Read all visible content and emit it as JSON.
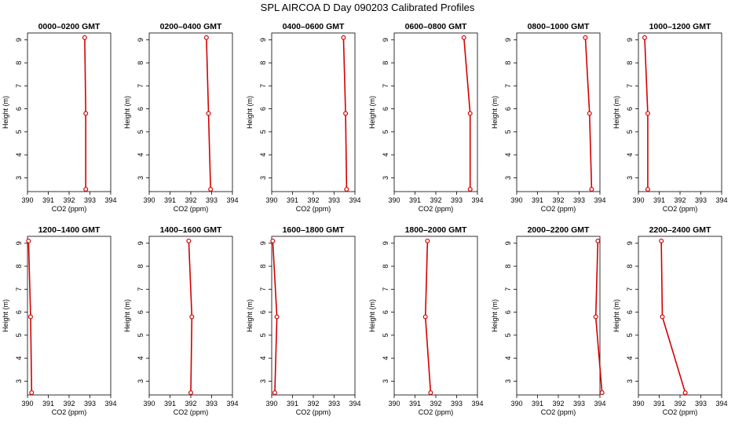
{
  "figure": {
    "title": "SPL AIRCOA D  Day 090203  Calibrated Profiles",
    "line_color": "#d40000"
  },
  "chart_data": [
    {
      "type": "line",
      "title": "0000–0200 GMT",
      "xlabel": "CO2 (ppm)",
      "ylabel": "Height (m)",
      "xlim": [
        390,
        394
      ],
      "ylim": [
        2.4,
        9.3
      ],
      "xticks": [
        390,
        391,
        392,
        393,
        394
      ],
      "yticks": [
        3,
        4,
        5,
        6,
        7,
        8,
        9
      ],
      "grid": false,
      "series": [
        {
          "x": [
            392.8,
            392.8,
            392.75
          ],
          "y": [
            2.5,
            5.8,
            9.1
          ]
        }
      ]
    },
    {
      "type": "line",
      "title": "0200–0400 GMT",
      "xlabel": "CO2 (ppm)",
      "ylabel": "Height (m)",
      "xlim": [
        390,
        394
      ],
      "ylim": [
        2.4,
        9.3
      ],
      "xticks": [
        390,
        391,
        392,
        393,
        394
      ],
      "yticks": [
        3,
        4,
        5,
        6,
        7,
        8,
        9
      ],
      "grid": false,
      "series": [
        {
          "x": [
            392.95,
            392.85,
            392.75
          ],
          "y": [
            2.5,
            5.8,
            9.1
          ]
        }
      ]
    },
    {
      "type": "line",
      "title": "0400–0600 GMT",
      "xlabel": "CO2 (ppm)",
      "ylabel": "Height (m)",
      "xlim": [
        390,
        394
      ],
      "ylim": [
        2.4,
        9.3
      ],
      "xticks": [
        390,
        391,
        392,
        393,
        394
      ],
      "yticks": [
        3,
        4,
        5,
        6,
        7,
        8,
        9
      ],
      "grid": false,
      "series": [
        {
          "x": [
            393.6,
            393.55,
            393.45
          ],
          "y": [
            2.5,
            5.8,
            9.1
          ]
        }
      ]
    },
    {
      "type": "line",
      "title": "0600–0800 GMT",
      "xlabel": "CO2 (ppm)",
      "ylabel": "Height (m)",
      "xlim": [
        390,
        394
      ],
      "ylim": [
        2.4,
        9.3
      ],
      "xticks": [
        390,
        391,
        392,
        393,
        394
      ],
      "yticks": [
        3,
        4,
        5,
        6,
        7,
        8,
        9
      ],
      "grid": false,
      "series": [
        {
          "x": [
            393.65,
            393.65,
            393.35
          ],
          "y": [
            2.5,
            5.8,
            9.1
          ]
        }
      ]
    },
    {
      "type": "line",
      "title": "0800–1000 GMT",
      "xlabel": "CO2 (ppm)",
      "ylabel": "Height (m)",
      "xlim": [
        390,
        394
      ],
      "ylim": [
        2.4,
        9.3
      ],
      "xticks": [
        390,
        391,
        392,
        393,
        394
      ],
      "yticks": [
        3,
        4,
        5,
        6,
        7,
        8,
        9
      ],
      "grid": false,
      "series": [
        {
          "x": [
            393.6,
            393.5,
            393.3
          ],
          "y": [
            2.5,
            5.8,
            9.1
          ]
        }
      ]
    },
    {
      "type": "line",
      "title": "1000–1200 GMT",
      "xlabel": "CO2 (ppm)",
      "ylabel": "Height (m)",
      "xlim": [
        390,
        394
      ],
      "ylim": [
        2.4,
        9.3
      ],
      "xticks": [
        390,
        391,
        392,
        393,
        394
      ],
      "yticks": [
        3,
        4,
        5,
        6,
        7,
        8,
        9
      ],
      "grid": false,
      "series": [
        {
          "x": [
            390.45,
            390.45,
            390.3
          ],
          "y": [
            2.5,
            5.8,
            9.1
          ]
        }
      ]
    },
    {
      "type": "line",
      "title": "1200–1400 GMT",
      "xlabel": "CO2 (ppm)",
      "ylabel": "Height (m)",
      "xlim": [
        390,
        394
      ],
      "ylim": [
        2.4,
        9.3
      ],
      "xticks": [
        390,
        391,
        392,
        393,
        394
      ],
      "yticks": [
        3,
        4,
        5,
        6,
        7,
        8,
        9
      ],
      "grid": false,
      "series": [
        {
          "x": [
            390.2,
            390.15,
            390.05
          ],
          "y": [
            2.5,
            5.8,
            9.1
          ]
        }
      ]
    },
    {
      "type": "line",
      "title": "1400–1600 GMT",
      "xlabel": "CO2 (ppm)",
      "ylabel": "Height (m)",
      "xlim": [
        390,
        394
      ],
      "ylim": [
        2.4,
        9.3
      ],
      "xticks": [
        390,
        391,
        392,
        393,
        394
      ],
      "yticks": [
        3,
        4,
        5,
        6,
        7,
        8,
        9
      ],
      "grid": false,
      "series": [
        {
          "x": [
            392.0,
            392.05,
            391.9
          ],
          "y": [
            2.5,
            5.8,
            9.1
          ]
        }
      ]
    },
    {
      "type": "line",
      "title": "1600–1800 GMT",
      "xlabel": "CO2 (ppm)",
      "ylabel": "Height (m)",
      "xlim": [
        390,
        394
      ],
      "ylim": [
        2.4,
        9.3
      ],
      "xticks": [
        390,
        391,
        392,
        393,
        394
      ],
      "yticks": [
        3,
        4,
        5,
        6,
        7,
        8,
        9
      ],
      "grid": false,
      "series": [
        {
          "x": [
            390.15,
            390.25,
            390.05
          ],
          "y": [
            2.5,
            5.8,
            9.1
          ]
        }
      ]
    },
    {
      "type": "line",
      "title": "1800–2000 GMT",
      "xlabel": "CO2 (ppm)",
      "ylabel": "Height (m)",
      "xlim": [
        390,
        394
      ],
      "ylim": [
        2.4,
        9.3
      ],
      "xticks": [
        390,
        391,
        392,
        393,
        394
      ],
      "yticks": [
        3,
        4,
        5,
        6,
        7,
        8,
        9
      ],
      "grid": false,
      "series": [
        {
          "x": [
            391.75,
            391.5,
            391.6
          ],
          "y": [
            2.5,
            5.8,
            9.1
          ]
        }
      ]
    },
    {
      "type": "line",
      "title": "2000–2200 GMT",
      "xlabel": "CO2 (ppm)",
      "ylabel": "Height (m)",
      "xlim": [
        390,
        394
      ],
      "ylim": [
        2.4,
        9.3
      ],
      "xticks": [
        390,
        391,
        392,
        393,
        394
      ],
      "yticks": [
        3,
        4,
        5,
        6,
        7,
        8,
        9
      ],
      "grid": false,
      "series": [
        {
          "x": [
            394.1,
            393.8,
            393.9
          ],
          "y": [
            2.5,
            5.8,
            9.1
          ]
        }
      ]
    },
    {
      "type": "line",
      "title": "2200–2400 GMT",
      "xlabel": "CO2 (ppm)",
      "ylabel": "Height (m)",
      "xlim": [
        390,
        394
      ],
      "ylim": [
        2.4,
        9.3
      ],
      "xticks": [
        390,
        391,
        392,
        393,
        394
      ],
      "yticks": [
        3,
        4,
        5,
        6,
        7,
        8,
        9
      ],
      "grid": false,
      "series": [
        {
          "x": [
            392.25,
            391.15,
            391.1
          ],
          "y": [
            2.5,
            5.8,
            9.1
          ]
        }
      ]
    }
  ]
}
